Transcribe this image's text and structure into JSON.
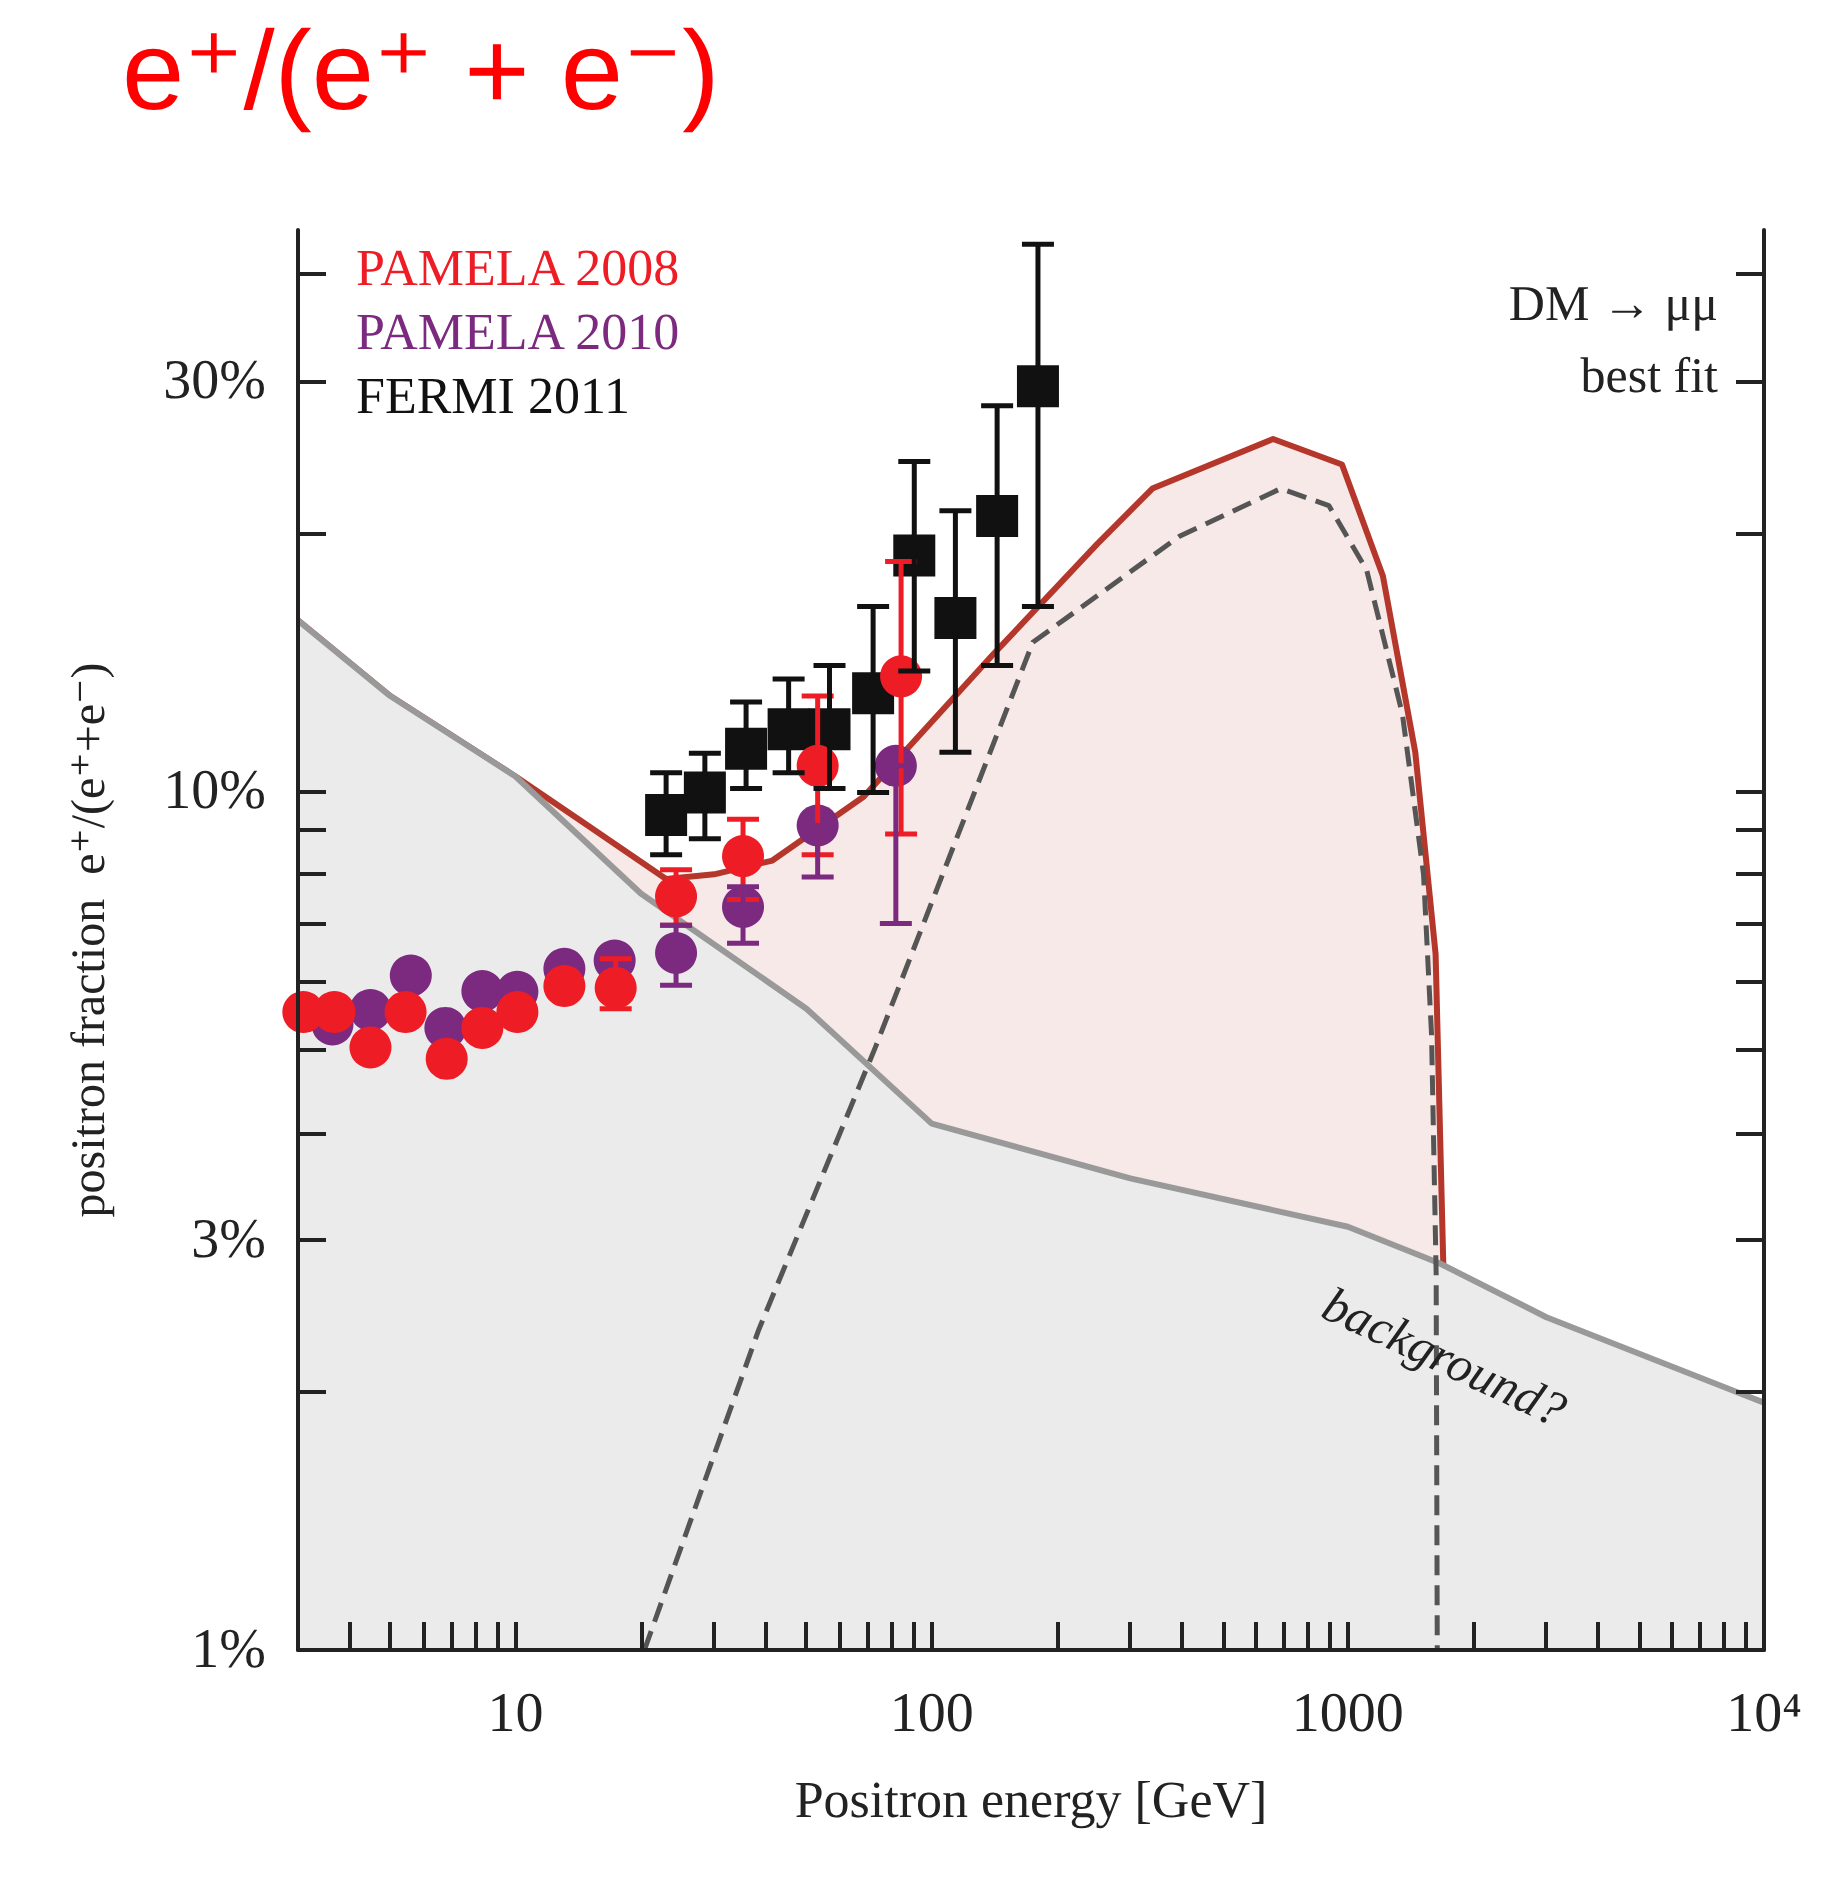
{
  "chart_data": {
    "type": "scatter",
    "title": "e⁺/(e⁺ + e⁻)",
    "xlabel": "Positron energy [GeV]",
    "ylabel": "positron fraction  e⁺/(e⁺+e⁻)",
    "log": "xy",
    "xlim": [
      3,
      10000
    ],
    "ylim": [
      1,
      45
    ],
    "xticks": [
      {
        "value": 4,
        "label": null
      },
      {
        "value": 5,
        "label": null
      },
      {
        "value": 6,
        "label": null
      },
      {
        "value": 7,
        "label": null
      },
      {
        "value": 8,
        "label": null
      },
      {
        "value": 9,
        "label": null
      },
      10,
      {
        "value": 20,
        "label": null
      },
      {
        "value": 30,
        "label": null
      },
      {
        "value": 40,
        "label": null
      },
      {
        "value": 50,
        "label": null
      },
      {
        "value": 60,
        "label": null
      },
      {
        "value": 70,
        "label": null
      },
      {
        "value": 80,
        "label": null
      },
      {
        "value": 90,
        "label": null
      },
      100,
      {
        "value": 200,
        "label": null
      },
      {
        "value": 300,
        "label": null
      },
      {
        "value": 400,
        "label": null
      },
      {
        "value": 500,
        "label": null
      },
      {
        "value": 600,
        "label": null
      },
      {
        "value": 700,
        "label": null
      },
      {
        "value": 800,
        "label": null
      },
      {
        "value": 900,
        "label": null
      },
      1000,
      {
        "value": 2000,
        "label": null
      },
      {
        "value": 3000,
        "label": null
      },
      {
        "value": 4000,
        "label": null
      },
      {
        "value": 5000,
        "label": null
      },
      {
        "value": 6000,
        "label": null
      },
      {
        "value": 7000,
        "label": null
      },
      {
        "value": 8000,
        "label": null
      },
      {
        "value": 9000,
        "label": null
      },
      {
        "value": 10000,
        "label": "10⁴"
      }
    ],
    "yticks": [
      {
        "value": 1,
        "label": "1%"
      },
      {
        "value": 2,
        "label": null
      },
      {
        "value": 3,
        "label": "3%"
      },
      {
        "value": 4,
        "label": null
      },
      {
        "value": 5,
        "label": null
      },
      {
        "value": 6,
        "label": null
      },
      {
        "value": 7,
        "label": null
      },
      {
        "value": 8,
        "label": null
      },
      {
        "value": 9,
        "label": null
      },
      {
        "value": 10,
        "label": "10%"
      },
      {
        "value": 20,
        "label": null
      },
      {
        "value": 30,
        "label": "30%"
      },
      {
        "value": 40,
        "label": null
      }
    ],
    "legend": "top left",
    "grid": false,
    "annotations": [
      "DM → μμ",
      "best fit",
      "background?"
    ],
    "series": [
      {
        "type": "area",
        "color": "#b5372c",
        "line_style": "solid",
        "marker": "none",
        "x": [
          3,
          5,
          10,
          15,
          23,
          30,
          41.4,
          68.6,
          140,
          250,
          339,
          661,
          968,
          1214,
          1452,
          1625,
          1698,
          3000,
          10000
        ],
        "values": [
          15.8,
          12.9,
          10.4,
          9.1,
          7.9,
          8.0,
          8.3,
          9.85,
          14.4,
          19.4,
          22.5,
          25.7,
          24.0,
          17.8,
          11.1,
          6.46,
          2.74,
          2.4,
          1.94
        ]
      },
      {
        "type": "area",
        "color": "#999999",
        "line_style": "solid",
        "marker": "none",
        "x": [
          3,
          5,
          10,
          20,
          50,
          100,
          300,
          1000,
          1660,
          3000,
          10000
        ],
        "values": [
          15.8,
          12.9,
          10.4,
          7.6,
          5.58,
          4.1,
          3.54,
          3.11,
          2.82,
          2.44,
          1.94
        ]
      },
      {
        "type": "line",
        "color": "#555555",
        "line_style": "dashed",
        "marker": "none",
        "x": [
          20.4,
          38.4,
          73.2,
          175,
          394,
          690,
          900,
          1109,
          1352,
          1520,
          1589,
          1630,
          1640
        ],
        "values": [
          1.0,
          2.36,
          5.03,
          14.9,
          19.8,
          22.5,
          21.5,
          18.1,
          12.3,
          8.0,
          5.2,
          2.74,
          1.0
        ]
      },
      {
        "name": "PAMELA 2008",
        "color": "#ee1c25",
        "marker": "circle",
        "x": [
          3.09,
          3.67,
          4.48,
          5.44,
          6.83,
          8.32,
          10.1,
          13.1,
          17.4,
          24.3,
          35.2,
          53.2,
          84.4
        ],
        "values": [
          5.53,
          5.53,
          5.03,
          5.53,
          4.88,
          5.3,
          5.53,
          5.93,
          5.9,
          7.54,
          8.4,
          10.7,
          13.6
        ],
        "errors": [
          null,
          null,
          null,
          null,
          null,
          null,
          null,
          null,
          [
            5.58,
            6.38
          ],
          [
            6.98,
            8.1
          ],
          [
            7.48,
            9.27
          ],
          [
            8.43,
            12.9
          ],
          [
            8.91,
            18.5
          ]
        ]
      },
      {
        "name": "PAMELA 2010",
        "color": "#7b2a7f",
        "marker": "circle",
        "x": [
          3.63,
          4.48,
          5.6,
          6.78,
          8.32,
          10.1,
          13.1,
          17.3,
          24.3,
          35.2,
          53.2,
          82
        ],
        "values": [
          5.35,
          5.56,
          6.1,
          5.3,
          5.85,
          5.84,
          6.21,
          6.35,
          6.48,
          7.33,
          9.12,
          10.7
        ],
        "errors": [
          null,
          null,
          null,
          null,
          null,
          null,
          null,
          null,
          [
            5.94,
            6.98
          ],
          [
            6.65,
            7.74
          ],
          [
            7.94,
            9.12
          ],
          [
            7.01,
            10.7
          ]
        ]
      },
      {
        "name": "FERMI 2011",
        "color": "#111111",
        "marker": "square",
        "x": [
          23.0,
          28.5,
          35.8,
          45.3,
          56.8,
          72.3,
          90.8,
          114,
          143.6,
          180
        ],
        "values": [
          9.38,
          9.96,
          11.2,
          11.8,
          11.8,
          13.0,
          18.8,
          15.9,
          20.9,
          29.6
        ],
        "errors": [
          [
            8.43,
            10.5
          ],
          [
            8.8,
            11.07
          ],
          [
            10.07,
            12.7
          ],
          [
            10.5,
            13.5
          ],
          [
            10.07,
            14.0
          ],
          [
            9.96,
            16.4
          ],
          [
            13.8,
            24.2
          ],
          [
            11.1,
            21.2
          ],
          [
            14.0,
            28.1
          ],
          [
            16.4,
            43.3
          ]
        ]
      }
    ]
  }
}
